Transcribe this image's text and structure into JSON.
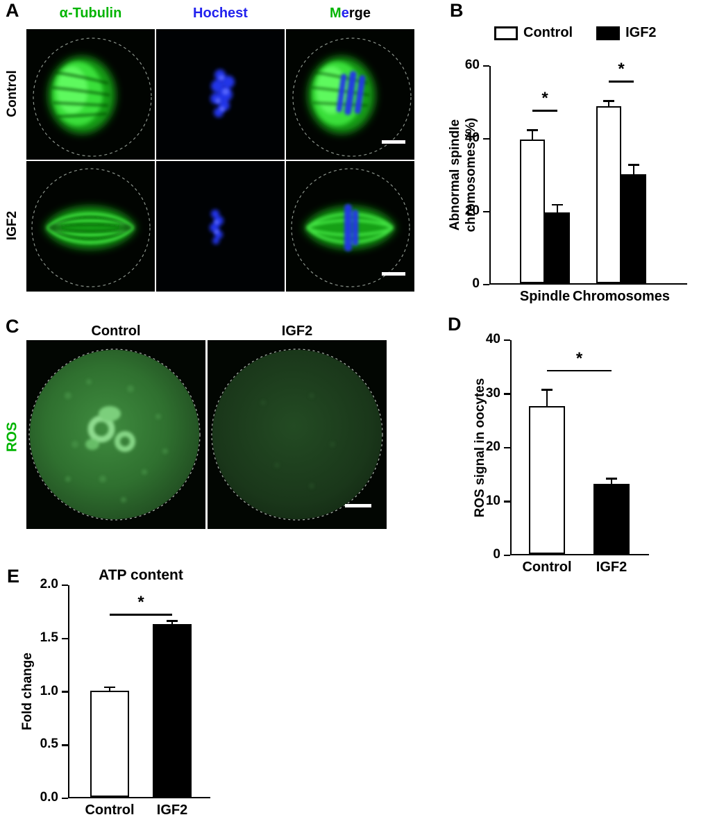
{
  "colors": {
    "tubulin_green": "#00b400",
    "hochest_blue": "#2222ee",
    "ros_green": "#00b400",
    "axis": "#000000",
    "bar_control_fill": "#ffffff",
    "bar_igf2_fill": "#000000"
  },
  "panelA": {
    "label": "A",
    "headers": {
      "tubulin": "α-Tubulin",
      "hochest": "Hochest",
      "merge_m": "M",
      "merge_e": "e",
      "merge_rest": "rge"
    },
    "row_labels": {
      "control": "Control",
      "igf2": "IGF2"
    }
  },
  "panelB": {
    "label": "B"
  },
  "panelC": {
    "label": "C",
    "headers": {
      "control": "Control",
      "igf2": "IGF2"
    },
    "row_label": "ROS"
  },
  "panelD": {
    "label": "D"
  },
  "panelE": {
    "label": "E"
  },
  "chart_data": [
    {
      "id": "B",
      "type": "bar",
      "title": "",
      "ylabel": "Abnormal spindle chromosomes (%)",
      "ylabel_lines": [
        "Abnormal spindle",
        "chromosomes (%)"
      ],
      "ylim": [
        0,
        60
      ],
      "yticks": [
        0,
        20,
        40,
        60
      ],
      "categories": [
        "Spindle",
        "Chromosomes"
      ],
      "series": [
        {
          "name": "Control",
          "fill": "#ffffff",
          "values": [
            39.5,
            48.5
          ],
          "errors": [
            2.5,
            1.5
          ]
        },
        {
          "name": "IGF2",
          "fill": "#000000",
          "values": [
            19.5,
            30.0
          ],
          "errors": [
            2.0,
            2.5
          ]
        }
      ],
      "significance": [
        "*",
        "*"
      ],
      "legend": [
        "Control",
        "IGF2"
      ],
      "legend_position": "top",
      "grid": false
    },
    {
      "id": "D",
      "type": "bar",
      "title": "",
      "ylabel": "ROS signal in oocytes",
      "ylim": [
        0,
        40
      ],
      "yticks": [
        0,
        10,
        20,
        30,
        40
      ],
      "categories": [
        "Control",
        "IGF2"
      ],
      "series": [
        {
          "name": "ROS signal",
          "fills": [
            "#ffffff",
            "#000000"
          ],
          "values": [
            27.5,
            13.0
          ],
          "errors": [
            3.0,
            1.0
          ]
        }
      ],
      "significance": [
        "*"
      ],
      "grid": false
    },
    {
      "id": "E",
      "type": "bar",
      "title": "ATP content",
      "ylabel": "Fold change",
      "ylim": [
        0,
        2.0
      ],
      "yticks": [
        0,
        0.5,
        1.0,
        1.5,
        2.0
      ],
      "ytick_labels": [
        "0.0",
        "0.5",
        "1.0",
        "1.5",
        "2.0"
      ],
      "categories": [
        "Control",
        "IGF2"
      ],
      "series": [
        {
          "name": "Fold change",
          "fills": [
            "#ffffff",
            "#000000"
          ],
          "values": [
            1.0,
            1.62
          ],
          "errors": [
            0.03,
            0.03
          ]
        }
      ],
      "significance": [
        "*"
      ],
      "grid": false
    }
  ]
}
